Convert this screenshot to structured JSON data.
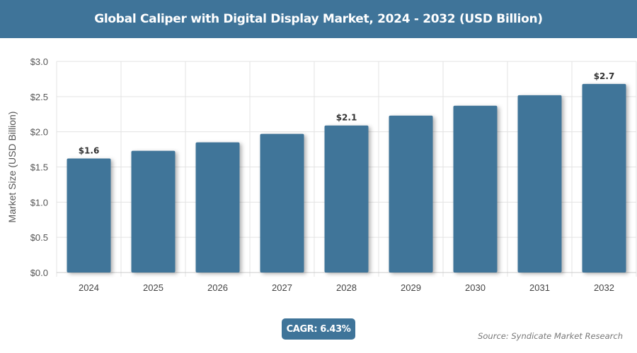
{
  "header": {
    "title": "Global Caliper with Digital Display Market, 2024 - 2032 (USD Billion)"
  },
  "chart_data": {
    "type": "bar",
    "title": "Global Caliper with Digital Display Market, 2024 - 2032 (USD Billion)",
    "xlabel": "",
    "ylabel": "Market Size (USD Billion)",
    "categories": [
      "2024",
      "2025",
      "2026",
      "2027",
      "2028",
      "2029",
      "2030",
      "2031",
      "2032"
    ],
    "values": [
      1.62,
      1.73,
      1.85,
      1.97,
      2.09,
      2.23,
      2.37,
      2.52,
      2.68
    ],
    "data_labels": {
      "0": "$1.6",
      "4": "$2.1",
      "8": "$2.7"
    },
    "ylim": [
      0,
      3.0
    ],
    "yticks": [
      "$0.0",
      "$0.5",
      "$1.0",
      "$1.5",
      "$2.0",
      "$2.5",
      "$3.0"
    ],
    "grid": true,
    "bar_color": "#3f7499"
  },
  "footer": {
    "cagr": "CAGR: 6.43%",
    "source": "Source: Syndicate Market Research"
  }
}
